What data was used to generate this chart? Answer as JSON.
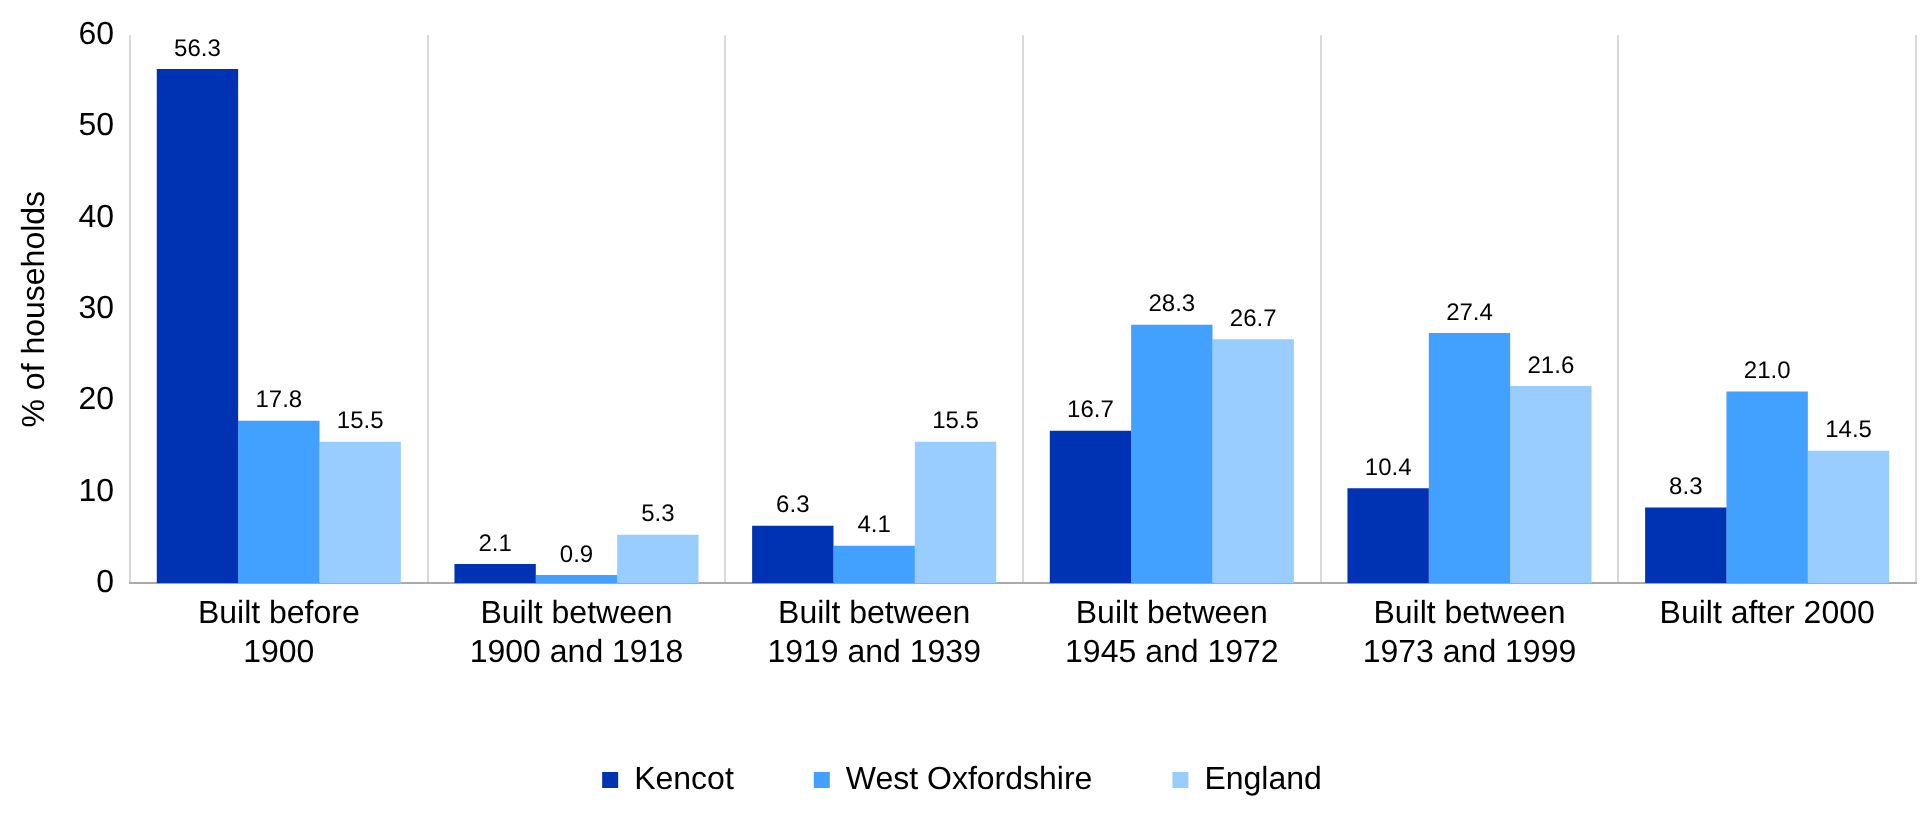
{
  "chart_data": {
    "type": "bar",
    "ylabel": "% of households",
    "categories": [
      "Built before 1900",
      "Built between 1900 and 1918",
      "Built between 1919 and 1939",
      "Built between 1945 and 1972",
      "Built between 1973 and 1999",
      "Built after 2000"
    ],
    "series": [
      {
        "name": "Kencot",
        "color": "#0033b3",
        "values": [
          56.3,
          2.1,
          6.3,
          16.7,
          10.4,
          8.3
        ],
        "value_labels": [
          "56.3",
          "2.1",
          "6.3",
          "16.7",
          "10.4",
          "8.3"
        ]
      },
      {
        "name": "West Oxfordshire",
        "color": "#42a0ff",
        "values": [
          17.8,
          0.9,
          4.1,
          28.3,
          27.4,
          21.0
        ],
        "value_labels": [
          "17.8",
          "0.9",
          "4.1",
          "28.3",
          "27.4",
          "21.0"
        ]
      },
      {
        "name": "England",
        "color": "#99ccff",
        "values": [
          15.5,
          5.3,
          15.5,
          26.7,
          21.6,
          14.5
        ],
        "value_labels": [
          "15.5",
          "5.3",
          "15.5",
          "26.7",
          "21.6",
          "14.5"
        ]
      }
    ],
    "ylim": [
      0,
      60
    ],
    "yticks": [
      0,
      10,
      20,
      30,
      40,
      50,
      60
    ],
    "grid": "x",
    "legend": "bottom"
  }
}
